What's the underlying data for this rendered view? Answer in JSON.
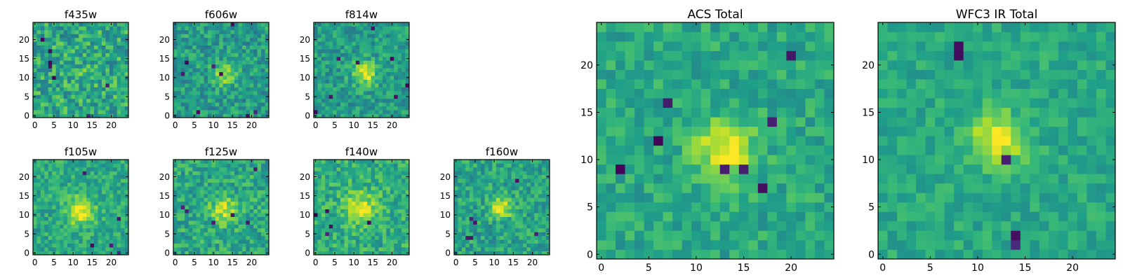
{
  "chart_data": [
    {
      "type": "heatmap",
      "title": "f435w",
      "size": 25,
      "seed": 11,
      "cx": 12,
      "cy": 11,
      "amp": 0.05,
      "sigma": 3.0,
      "noise": 0.2,
      "base": 0.6,
      "outliers": 7,
      "xticks": [
        0,
        5,
        10,
        15,
        20
      ],
      "yticks": [
        0,
        5,
        10,
        15,
        20
      ]
    },
    {
      "type": "heatmap",
      "title": "f606w",
      "size": 25,
      "seed": 23,
      "cx": 13,
      "cy": 11,
      "amp": 0.35,
      "sigma": 2.0,
      "noise": 0.16,
      "base": 0.55,
      "outliers": 8,
      "xticks": [
        0,
        5,
        10,
        15,
        20
      ],
      "yticks": [
        0,
        5,
        10,
        15,
        20
      ]
    },
    {
      "type": "heatmap",
      "title": "f814w",
      "size": 25,
      "seed": 37,
      "cx": 13,
      "cy": 11,
      "amp": 0.4,
      "sigma": 2.2,
      "noise": 0.15,
      "base": 0.55,
      "outliers": 8,
      "xticks": [
        0,
        5,
        10,
        15,
        20
      ],
      "yticks": [
        0,
        5,
        10,
        15,
        20
      ]
    },
    {
      "type": "heatmap",
      "title": "f105w",
      "size": 25,
      "seed": 41,
      "cx": 12,
      "cy": 11,
      "amp": 0.4,
      "sigma": 2.5,
      "noise": 0.14,
      "base": 0.6,
      "outliers": 5,
      "xticks": [
        0,
        5,
        10,
        15,
        20
      ],
      "yticks": [
        0,
        5,
        10,
        15,
        20
      ]
    },
    {
      "type": "heatmap",
      "title": "f125w",
      "size": 25,
      "seed": 53,
      "cx": 13,
      "cy": 11,
      "amp": 0.3,
      "sigma": 2.5,
      "noise": 0.16,
      "base": 0.6,
      "outliers": 6,
      "xticks": [
        0,
        5,
        10,
        15,
        20
      ],
      "yticks": [
        0,
        5,
        10,
        15,
        20
      ]
    },
    {
      "type": "heatmap",
      "title": "f140w",
      "size": 25,
      "seed": 67,
      "cx": 12,
      "cy": 12,
      "amp": 0.3,
      "sigma": 3.0,
      "noise": 0.15,
      "base": 0.62,
      "outliers": 5,
      "xticks": [
        0,
        5,
        10,
        15,
        20
      ],
      "yticks": [
        0,
        5,
        10,
        15,
        20
      ]
    },
    {
      "type": "heatmap",
      "title": "f160w",
      "size": 25,
      "seed": 79,
      "cx": 12,
      "cy": 12,
      "amp": 0.4,
      "sigma": 2.0,
      "noise": 0.15,
      "base": 0.58,
      "outliers": 6,
      "xticks": [
        0,
        5,
        10,
        15,
        20
      ],
      "yticks": [
        0,
        5,
        10,
        15,
        20
      ]
    },
    {
      "type": "heatmap",
      "title": "ACS Total",
      "size": 25,
      "seed": 97,
      "cx": 13,
      "cy": 11,
      "amp": 0.4,
      "sigma": 2.2,
      "noise": 0.12,
      "base": 0.6,
      "outliers": 8,
      "xticks": [
        0,
        5,
        10,
        15,
        20
      ],
      "yticks": [
        0,
        5,
        10,
        15,
        20
      ]
    },
    {
      "type": "heatmap",
      "title": "WFC3 IR Total",
      "size": 25,
      "seed": 131,
      "cx": 12,
      "cy": 12,
      "amp": 0.4,
      "sigma": 2.0,
      "noise": 0.1,
      "base": 0.6,
      "outliers": 5,
      "xticks": [
        0,
        5,
        10,
        15,
        20
      ],
      "yticks": [
        0,
        5,
        10,
        15,
        20
      ]
    }
  ]
}
